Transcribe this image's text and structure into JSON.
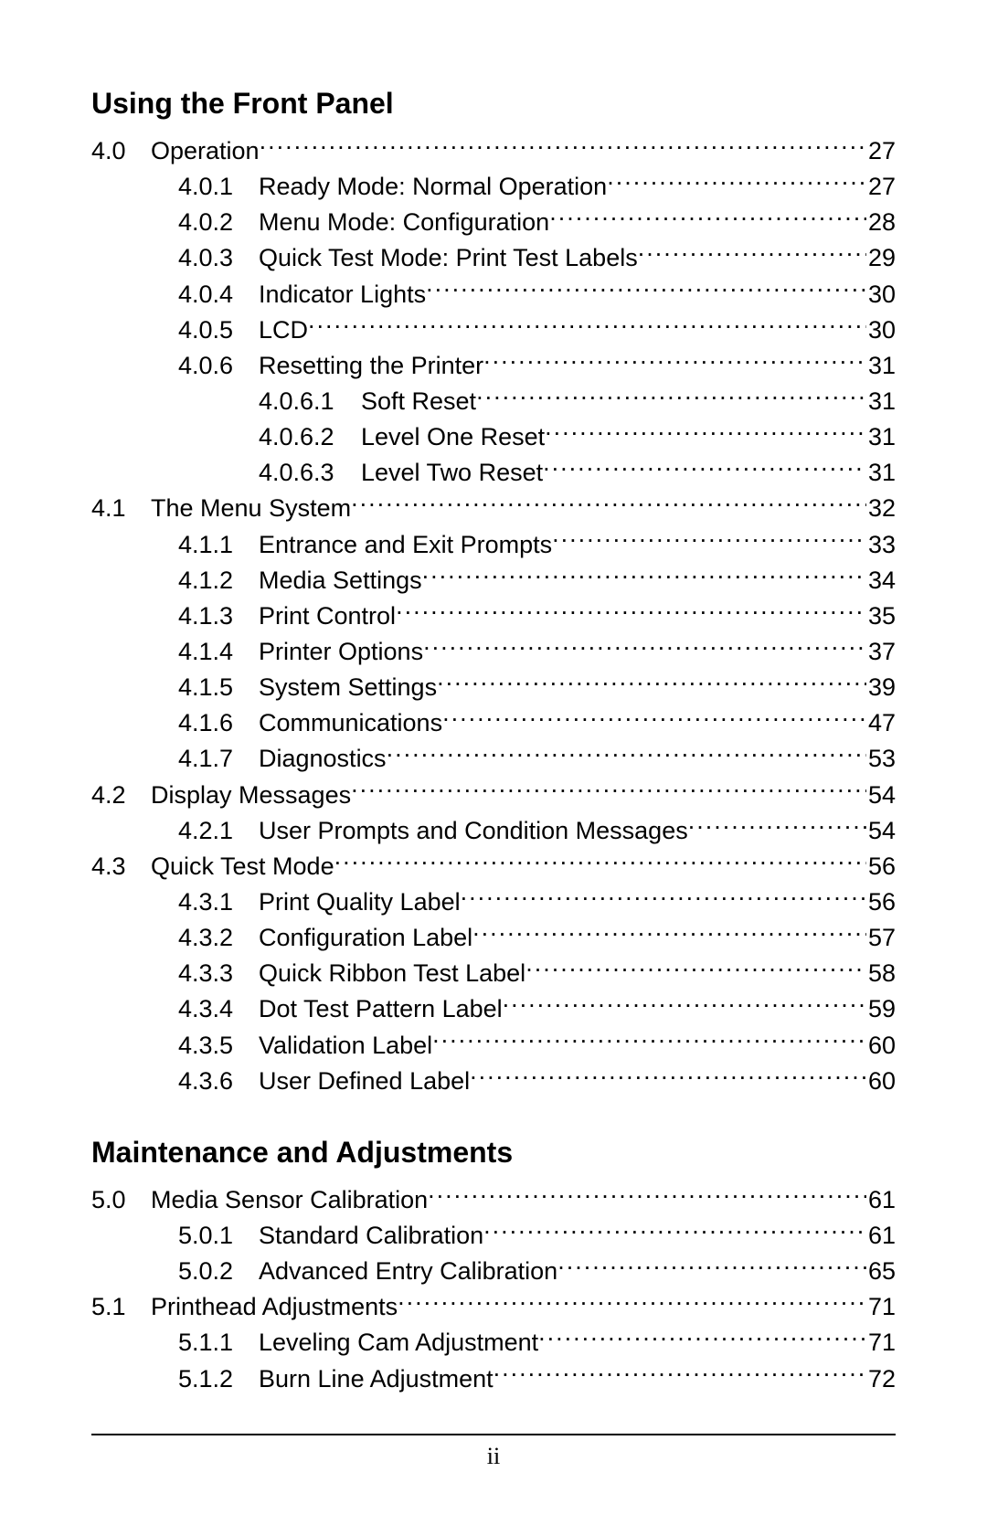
{
  "colors": {
    "background": "#ffffff",
    "text": "#000000",
    "rule": "#000000"
  },
  "typography": {
    "heading_fontsize_pt": 24,
    "body_fontsize_pt": 20,
    "font_family": "Arial",
    "heading_weight": "bold"
  },
  "page_number": "ii",
  "sections": [
    {
      "heading": "Using the Front Panel",
      "entries": [
        {
          "level": 1,
          "num": "4.0",
          "title": "Operation",
          "page": "27"
        },
        {
          "level": 2,
          "num": "4.0.1",
          "title": "Ready Mode: Normal Operation",
          "page": "27"
        },
        {
          "level": 2,
          "num": "4.0.2",
          "title": "Menu Mode: Configuration ",
          "page": "28"
        },
        {
          "level": 2,
          "num": "4.0.3",
          "title": "Quick Test Mode: Print Test Labels",
          "page": "29"
        },
        {
          "level": 2,
          "num": "4.0.4",
          "title": "Indicator Lights ",
          "page": "30"
        },
        {
          "level": 2,
          "num": "4.0.5",
          "title": "LCD ",
          "page": "30"
        },
        {
          "level": 2,
          "num": "4.0.6",
          "title": "Resetting the Printer",
          "page": "31"
        },
        {
          "level": 3,
          "num": "4.0.6.1",
          "title": "Soft Reset ",
          "page": "31"
        },
        {
          "level": 3,
          "num": "4.0.6.2",
          "title": "Level One Reset ",
          "page": "31"
        },
        {
          "level": 3,
          "num": "4.0.6.3",
          "title": "Level Two Reset ",
          "page": "31"
        },
        {
          "level": 1,
          "num": "4.1",
          "title": "The Menu System",
          "page": "32"
        },
        {
          "level": 2,
          "num": "4.1.1",
          "title": "Entrance and Exit Prompts",
          "page": "33"
        },
        {
          "level": 2,
          "num": "4.1.2",
          "title": "Media Settings",
          "page": "34"
        },
        {
          "level": 2,
          "num": "4.1.3",
          "title": "Print Control ",
          "page": "35"
        },
        {
          "level": 2,
          "num": "4.1.4",
          "title": "Printer Options",
          "page": "37"
        },
        {
          "level": 2,
          "num": "4.1.5",
          "title": "System Settings",
          "page": "39"
        },
        {
          "level": 2,
          "num": "4.1.6",
          "title": "Communications",
          "page": "47"
        },
        {
          "level": 2,
          "num": "4.1.7",
          "title": "Diagnostics",
          "page": "53"
        },
        {
          "level": 1,
          "num": "4.2",
          "title": "Display Messages",
          "page": "54"
        },
        {
          "level": 2,
          "num": "4.2.1",
          "title": "User Prompts and Condition Messages ",
          "page": "54"
        },
        {
          "level": 1,
          "num": "4.3",
          "title": "Quick Test Mode",
          "page": "56"
        },
        {
          "level": 2,
          "num": "4.3.1",
          "title": "Print Quality Label ",
          "page": "56"
        },
        {
          "level": 2,
          "num": "4.3.2",
          "title": "Configuration Label ",
          "page": "57"
        },
        {
          "level": 2,
          "num": "4.3.3",
          "title": "Quick Ribbon Test Label ",
          "page": "58"
        },
        {
          "level": 2,
          "num": "4.3.4",
          "title": "Dot Test Pattern Label",
          "page": "59"
        },
        {
          "level": 2,
          "num": "4.3.5",
          "title": "Validation Label",
          "page": "60"
        },
        {
          "level": 2,
          "num": "4.3.6",
          "title": "User Defined Label",
          "page": "60"
        }
      ]
    },
    {
      "heading": "Maintenance and Adjustments",
      "entries": [
        {
          "level": 1,
          "num": "5.0",
          "title": "Media Sensor Calibration",
          "page": "61"
        },
        {
          "level": 2,
          "num": "5.0.1",
          "title": "Standard Calibration",
          "page": "61"
        },
        {
          "level": 2,
          "num": "5.0.2",
          "title": "Advanced Entry Calibration ",
          "page": "65"
        },
        {
          "level": 1,
          "num": "5.1",
          "title": "Printhead Adjustments",
          "page": "71"
        },
        {
          "level": 2,
          "num": "5.1.1",
          "title": "Leveling Cam Adjustment",
          "page": "71"
        },
        {
          "level": 2,
          "num": "5.1.2",
          "title": "Burn Line Adjustment ",
          "page": "72"
        }
      ]
    }
  ]
}
